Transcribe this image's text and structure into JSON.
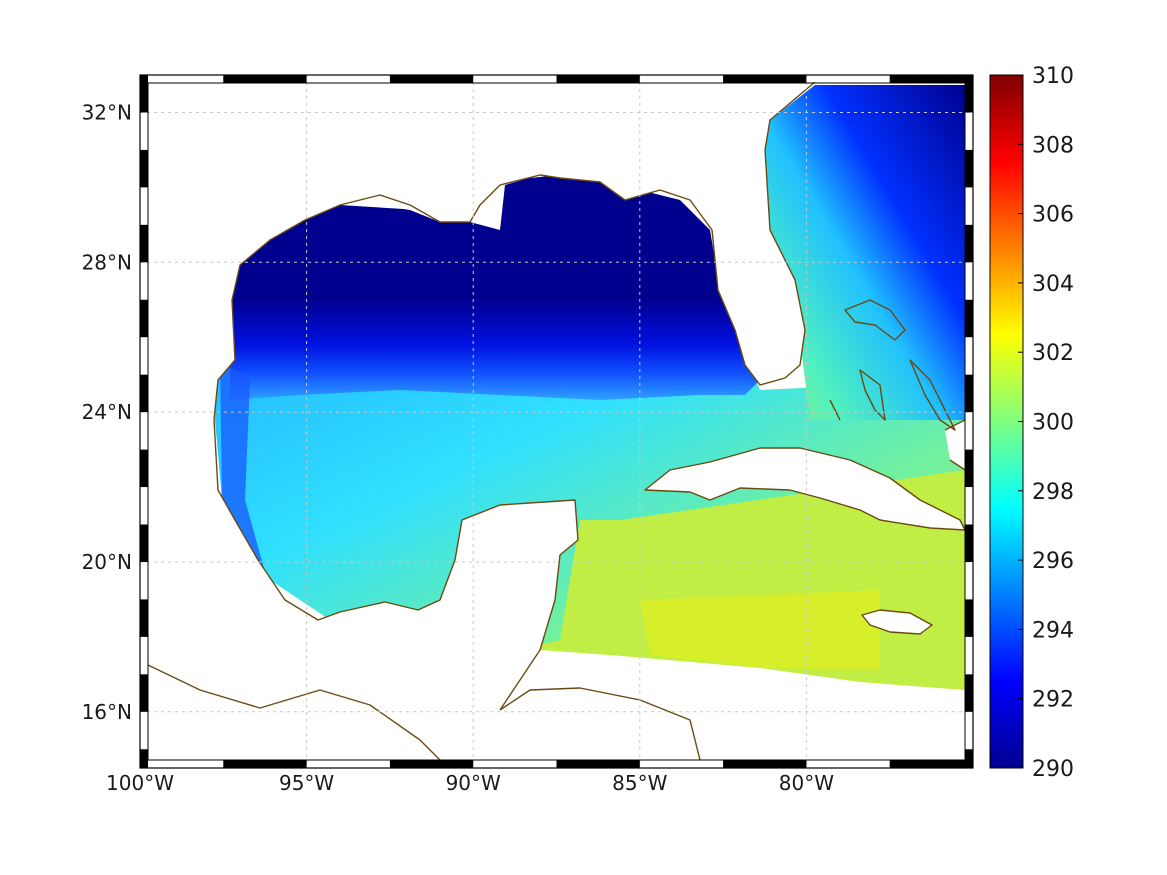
{
  "map": {
    "title": "",
    "variable_unit": "",
    "lon_range": [
      -100,
      -75
    ],
    "lat_range": [
      14.5,
      33
    ],
    "lon_ticks": [
      {
        "value": -100,
        "label": "100°W"
      },
      {
        "value": -95,
        "label": "95°W"
      },
      {
        "value": -90,
        "label": "90°W"
      },
      {
        "value": -85,
        "label": "85°W"
      },
      {
        "value": -80,
        "label": "80°W"
      }
    ],
    "lat_ticks": [
      {
        "value": 32,
        "label": "32°N"
      },
      {
        "value": 28,
        "label": "28°N"
      },
      {
        "value": 24,
        "label": "24°N"
      },
      {
        "value": 20,
        "label": "20°N"
      },
      {
        "value": 16,
        "label": "16°N"
      }
    ],
    "gridlines": true,
    "colormap": "jet",
    "colors": {
      "coastline": "#6b4a12",
      "frame_dark": "#000000",
      "frame_light": "#ffffff",
      "land": "#ffffff"
    }
  },
  "colorbar": {
    "min": 290,
    "max": 310,
    "ticks": [
      {
        "value": 310,
        "label": "310"
      },
      {
        "value": 308,
        "label": "308"
      },
      {
        "value": 306,
        "label": "306"
      },
      {
        "value": 304,
        "label": "304"
      },
      {
        "value": 302,
        "label": "302"
      },
      {
        "value": 300,
        "label": "300"
      },
      {
        "value": 298,
        "label": "298"
      },
      {
        "value": 296,
        "label": "296"
      },
      {
        "value": 294,
        "label": "294"
      },
      {
        "value": 292,
        "label": "292"
      },
      {
        "value": 290,
        "label": "290"
      }
    ]
  }
}
